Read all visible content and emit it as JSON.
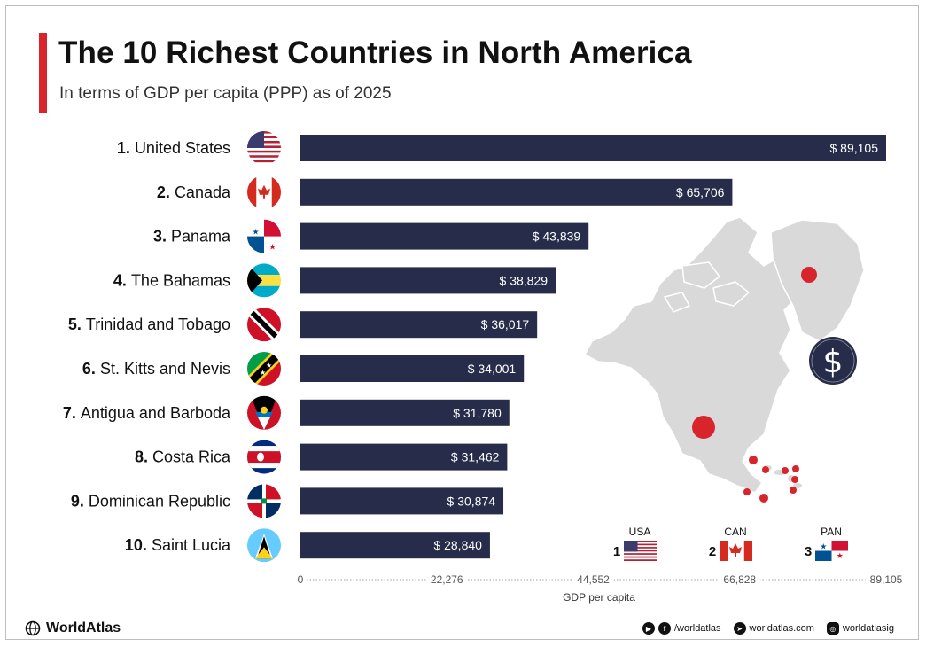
{
  "header": {
    "title": "The 10 Richest Countries in North America",
    "subtitle": "In terms of GDP per capita (PPP) as of 2025"
  },
  "chart_data": {
    "type": "bar",
    "orientation": "horizontal",
    "title": "The 10 Richest Countries in North America",
    "subtitle": "In terms of GDP per capita (PPP) as of 2025",
    "xlabel": "GDP per capita",
    "ylabel": "",
    "xlim": [
      0,
      89105
    ],
    "xticks": [
      "0",
      "22,276",
      "44,552",
      "66,828",
      "89,105"
    ],
    "xtick_values": [
      0,
      22276,
      44552,
      66828,
      89105
    ],
    "grid": false,
    "bar_color": "#262c49",
    "value_prefix": "$ ",
    "categories": [
      "1. United States",
      "2. Canada",
      "3. Panama",
      "4. The Bahamas",
      "5. Trinidad and Tobago",
      "6. St. Kitts and Nevis",
      "7. Antigua and Barboda",
      "8. Costa Rica",
      "9. Dominican Republic",
      "10. Saint Lucia"
    ],
    "values": [
      89105,
      65706,
      43839,
      38829,
      36017,
      34001,
      31780,
      31462,
      30874,
      28840
    ],
    "value_labels": [
      "$ 89,105",
      "$ 65,706",
      "$ 43,839",
      "$ 38,829",
      "$ 36,017",
      "$ 34,001",
      "$ 31,780",
      "$ 31,462",
      "$ 30,874",
      "$ 28,840"
    ],
    "flags": [
      "us-flag-icon",
      "canada-flag-icon",
      "panama-flag-icon",
      "bahamas-flag-icon",
      "trinidad-flag-icon",
      "st-kitts-flag-icon",
      "antigua-flag-icon",
      "costa-rica-flag-icon",
      "dominican-flag-icon",
      "saint-lucia-flag-icon"
    ]
  },
  "podium": [
    {
      "code": "USA",
      "rank": "1"
    },
    {
      "code": "CAN",
      "rank": "2"
    },
    {
      "code": "PAN",
      "rank": "3"
    }
  ],
  "map": {
    "icon": "north-america-map-icon",
    "badge": "$",
    "marker_color": "#d8252c"
  },
  "footer": {
    "brand": "WorldAtlas",
    "social_handle": "/worldatlas",
    "website": "worldatlas.com",
    "instagram": "worldatlasig"
  }
}
